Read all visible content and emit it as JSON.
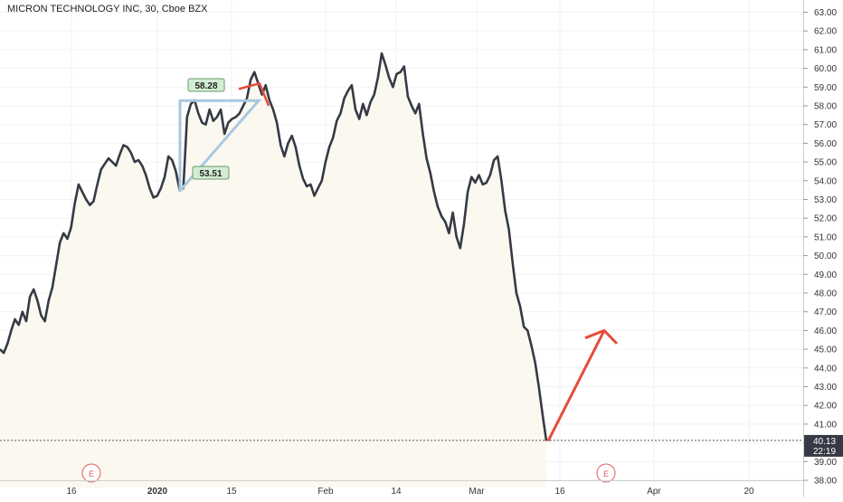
{
  "chart_data": {
    "type": "line",
    "title": "MICRON TECHNOLOGY INC, 30, Cboe BZX",
    "x_tick_labels": [
      "16",
      "2020",
      "15",
      "Feb",
      "14",
      "Mar",
      "16",
      "Apr",
      "20"
    ],
    "y_tick_labels": [
      "63.00",
      "62.00",
      "61.00",
      "60.00",
      "59.00",
      "58.00",
      "57.00",
      "56.00",
      "55.00",
      "54.00",
      "53.00",
      "52.00",
      "51.00",
      "50.00",
      "49.00",
      "48.00",
      "47.00",
      "46.00",
      "45.00",
      "44.00",
      "43.00",
      "42.00",
      "41.00",
      "40.00",
      "39.00",
      "38.00"
    ],
    "ylim": [
      37.6,
      63.4
    ],
    "grid": true,
    "last_price": {
      "value": 40.13,
      "label": "40.13"
    },
    "countdown": "22:19",
    "earnings_markers": [
      "E",
      "E"
    ],
    "price_labels": [
      {
        "label": "58.28",
        "value": 58.28
      },
      {
        "label": "53.51",
        "value": 53.51
      }
    ],
    "projected_arrow": {
      "from": 40.1,
      "to": 46.0
    },
    "series": [
      {
        "color": "#363a45",
        "values": [
          45.0,
          44.8,
          45.3,
          46.0,
          46.6,
          46.3,
          47.0,
          46.5,
          47.8,
          48.2,
          47.6,
          46.8,
          46.5,
          47.6,
          48.3,
          49.5,
          50.7,
          51.2,
          50.9,
          51.5,
          52.8,
          53.8,
          53.4,
          53.0,
          52.7,
          52.9,
          53.8,
          54.6,
          54.9,
          55.2,
          55.0,
          54.8,
          55.4,
          55.9,
          55.8,
          55.5,
          55.0,
          55.1,
          54.8,
          54.3,
          53.6,
          53.1,
          53.2,
          53.6,
          54.2,
          55.3,
          55.1,
          54.5,
          53.5,
          53.6,
          57.4,
          58.1,
          58.3,
          57.6,
          57.1,
          57.0,
          57.8,
          57.2,
          57.4,
          57.8,
          56.5,
          57.1,
          57.3,
          57.4,
          57.6,
          58.0,
          58.4,
          59.4,
          59.8,
          59.2,
          58.6,
          59.1,
          58.3,
          57.8,
          57.1,
          55.9,
          55.3,
          56.0,
          56.4,
          55.8,
          54.8,
          54.1,
          53.7,
          53.8,
          53.2,
          53.6,
          54.0,
          55.0,
          55.8,
          56.3,
          57.2,
          57.6,
          58.4,
          58.8,
          59.1,
          57.8,
          57.3,
          58.1,
          57.5,
          58.2,
          58.6,
          59.5,
          60.8,
          60.2,
          59.5,
          59.0,
          59.7,
          59.8,
          60.1,
          58.5,
          58.0,
          57.6,
          58.1,
          56.5,
          55.2,
          54.4,
          53.4,
          52.6,
          52.1,
          51.8,
          51.2,
          52.3,
          51.0,
          50.4,
          51.7,
          53.4,
          54.2,
          53.9,
          54.3,
          53.8,
          53.9,
          54.3,
          55.1,
          55.3,
          54.0,
          52.4,
          51.4,
          49.6,
          48.0,
          47.3,
          46.2,
          46.0,
          45.2,
          44.3,
          43.0,
          41.5,
          40.1
        ]
      }
    ]
  }
}
